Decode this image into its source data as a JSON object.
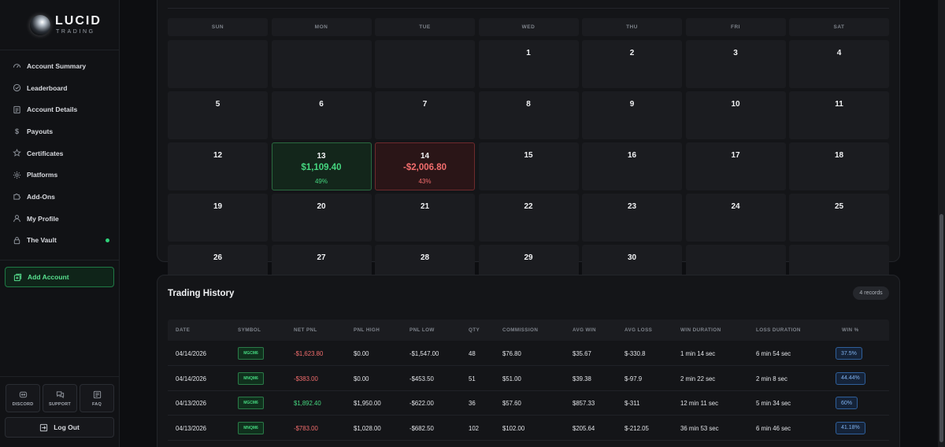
{
  "brand": {
    "name": "LUCID",
    "tagline": "TRADING"
  },
  "sidebar": {
    "items": [
      {
        "label": "Account Summary",
        "icon": "gauge-icon"
      },
      {
        "label": "Leaderboard",
        "icon": "award-icon"
      },
      {
        "label": "Account Details",
        "icon": "document-icon"
      },
      {
        "label": "Payouts",
        "icon": "dollar-icon"
      },
      {
        "label": "Certificates",
        "icon": "star-icon"
      },
      {
        "label": "Platforms",
        "icon": "gear-icon"
      },
      {
        "label": "Add-Ons",
        "icon": "puzzle-icon"
      },
      {
        "label": "My Profile",
        "icon": "user-icon"
      },
      {
        "label": "The Vault",
        "icon": "lock-icon",
        "status_dot_color": "#2fd27a"
      }
    ],
    "add_account": "Add Account",
    "quick_links": [
      {
        "label": "DISCORD",
        "icon": "discord-icon"
      },
      {
        "label": "SUPPORT",
        "icon": "chat-icon"
      },
      {
        "label": "FAQ",
        "icon": "faq-icon"
      }
    ],
    "logout": "Log Out"
  },
  "calendar": {
    "weekdays": [
      "SUN",
      "MON",
      "TUE",
      "WED",
      "THU",
      "FRI",
      "SAT"
    ],
    "cells": [
      {
        "day": ""
      },
      {
        "day": ""
      },
      {
        "day": ""
      },
      {
        "day": "1"
      },
      {
        "day": "2"
      },
      {
        "day": "3"
      },
      {
        "day": "4"
      },
      {
        "day": "5"
      },
      {
        "day": "6"
      },
      {
        "day": "7"
      },
      {
        "day": "8"
      },
      {
        "day": "9"
      },
      {
        "day": "10"
      },
      {
        "day": "11"
      },
      {
        "day": "12"
      },
      {
        "day": "13",
        "pnl": "$1,109.40",
        "pct": "49%",
        "tone": "green"
      },
      {
        "day": "14",
        "pnl": "-$2,006.80",
        "pct": "43%",
        "tone": "red"
      },
      {
        "day": "15"
      },
      {
        "day": "16"
      },
      {
        "day": "17"
      },
      {
        "day": "18"
      },
      {
        "day": "19"
      },
      {
        "day": "20"
      },
      {
        "day": "21"
      },
      {
        "day": "22"
      },
      {
        "day": "23"
      },
      {
        "day": "24"
      },
      {
        "day": "25"
      },
      {
        "day": "26"
      },
      {
        "day": "27"
      },
      {
        "day": "28"
      },
      {
        "day": "29"
      },
      {
        "day": "30"
      },
      {
        "day": ""
      },
      {
        "day": ""
      }
    ]
  },
  "history": {
    "title": "Trading History",
    "records": "4 records",
    "columns": [
      "DATE",
      "SYMBOL",
      "NET PNL",
      "PNL HIGH",
      "PNL LOW",
      "QTY",
      "COMMISSION",
      "AVG WIN",
      "AVG LOSS",
      "WIN DURATION",
      "LOSS DURATION",
      "WIN %"
    ],
    "rows": [
      {
        "date": "04/14/2026",
        "symbol": "MGCM6",
        "net_pnl": "-$1,623.80",
        "pnl_tone": "neg",
        "pnl_high": "$0.00",
        "pnl_low": "-$1,547.00",
        "qty": "48",
        "commission": "$76.80",
        "avg_win": "$35.67",
        "avg_loss": "$-330.8",
        "win_duration": "1 min 14 sec",
        "loss_duration": "6 min 54 sec",
        "win_pct": "37.5%"
      },
      {
        "date": "04/14/2026",
        "symbol": "MNQM6",
        "net_pnl": "-$383.00",
        "pnl_tone": "neg",
        "pnl_high": "$0.00",
        "pnl_low": "-$453.50",
        "qty": "51",
        "commission": "$51.00",
        "avg_win": "$39.38",
        "avg_loss": "$-97.9",
        "win_duration": "2 min 22 sec",
        "loss_duration": "2 min 8 sec",
        "win_pct": "44.44%"
      },
      {
        "date": "04/13/2026",
        "symbol": "MGCM6",
        "net_pnl": "$1,892.40",
        "pnl_tone": "pos",
        "pnl_high": "$1,950.00",
        "pnl_low": "-$622.00",
        "qty": "36",
        "commission": "$57.60",
        "avg_win": "$857.33",
        "avg_loss": "$-311",
        "win_duration": "12 min 11 sec",
        "loss_duration": "5 min 34 sec",
        "win_pct": "60%"
      },
      {
        "date": "04/13/2026",
        "symbol": "MNQM6",
        "net_pnl": "-$783.00",
        "pnl_tone": "neg",
        "pnl_high": "$1,028.00",
        "pnl_low": "-$682.50",
        "qty": "102",
        "commission": "$102.00",
        "avg_win": "$205.64",
        "avg_loss": "$-212.05",
        "win_duration": "36 min 53 sec",
        "loss_duration": "6 min 46 sec",
        "win_pct": "41.18%"
      }
    ]
  }
}
